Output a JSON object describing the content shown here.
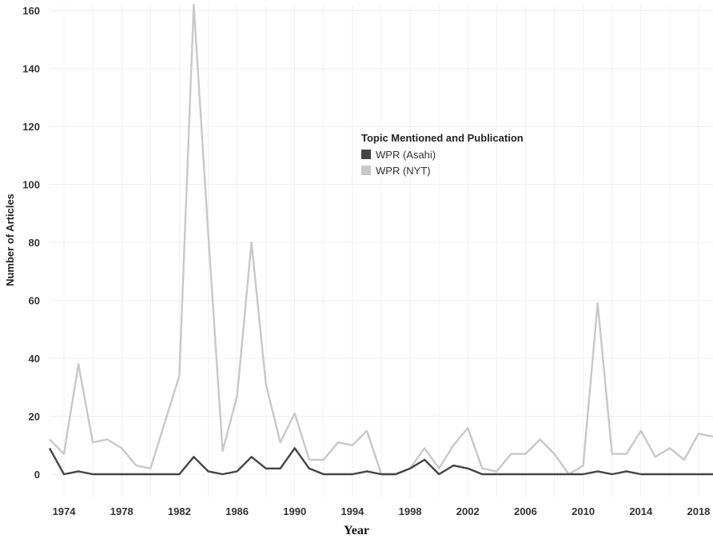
{
  "chart_data": {
    "type": "line",
    "xlabel": "Year",
    "ylabel": "Number of Articles",
    "xlim": [
      1973,
      2019
    ],
    "ylim": [
      -8,
      162
    ],
    "y_ticks": [
      0,
      20,
      40,
      60,
      80,
      100,
      120,
      140,
      160
    ],
    "x_ticks": [
      1974,
      1978,
      1982,
      1986,
      1990,
      1994,
      1998,
      2002,
      2006,
      2010,
      2014,
      2018
    ],
    "grid": true,
    "legend": {
      "title": "Topic Mentioned and Publication",
      "position": "upper-center"
    },
    "x": [
      1973,
      1974,
      1975,
      1976,
      1977,
      1978,
      1979,
      1980,
      1981,
      1982,
      1983,
      1984,
      1985,
      1986,
      1987,
      1988,
      1989,
      1990,
      1991,
      1992,
      1993,
      1994,
      1995,
      1996,
      1997,
      1998,
      1999,
      2000,
      2001,
      2002,
      2003,
      2004,
      2005,
      2006,
      2007,
      2008,
      2009,
      2010,
      2011,
      2012,
      2013,
      2014,
      2015,
      2016,
      2017,
      2018,
      2019
    ],
    "series": [
      {
        "name": "WPR (Asahi)",
        "color": "#444444",
        "values": [
          9,
          0,
          1,
          0,
          0,
          0,
          0,
          0,
          0,
          0,
          6,
          1,
          0,
          1,
          6,
          2,
          2,
          9,
          2,
          0,
          0,
          0,
          1,
          0,
          0,
          2,
          5,
          0,
          3,
          2,
          0,
          0,
          0,
          0,
          0,
          0,
          0,
          0,
          1,
          0,
          1,
          0,
          0,
          0,
          0,
          0,
          0
        ]
      },
      {
        "name": "WPR (NYT)",
        "color": "#c8c8c8",
        "values": [
          12,
          7,
          38,
          11,
          12,
          9,
          3,
          2,
          18,
          34,
          162,
          83,
          8,
          27,
          80,
          31,
          11,
          21,
          5,
          5,
          11,
          10,
          15,
          0,
          0,
          2,
          9,
          2,
          10,
          16,
          2,
          1,
          7,
          7,
          12,
          7,
          0,
          3,
          59,
          7,
          7,
          15,
          6,
          9,
          5,
          14,
          13
        ]
      }
    ]
  }
}
